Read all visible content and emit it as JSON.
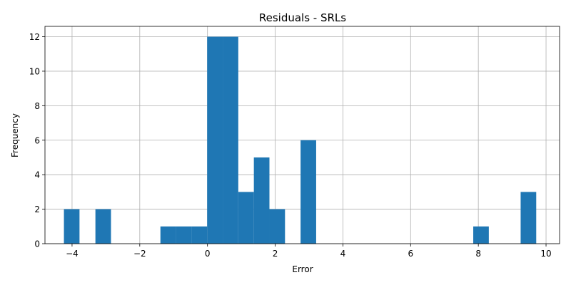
{
  "chart_data": {
    "type": "bar",
    "subtype": "histogram",
    "title": "Residuals - SRLs",
    "xlabel": "Error",
    "ylabel": "Frequency",
    "xlim": [
      -4.8,
      10.4
    ],
    "ylim": [
      0,
      12.6
    ],
    "xticks": [
      -4,
      -2,
      0,
      2,
      4,
      6,
      8,
      10
    ],
    "xtick_labels": [
      "−4",
      "−2",
      "0",
      "2",
      "4",
      "6",
      "8",
      "10"
    ],
    "yticks": [
      0,
      2,
      4,
      6,
      8,
      10,
      12
    ],
    "ytick_labels": [
      "0",
      "2",
      "4",
      "6",
      "8",
      "10",
      "12"
    ],
    "grid": true,
    "bar_color": "#1f77b4",
    "bins": [
      {
        "x0": -4.24,
        "x1": -3.78,
        "count": 2
      },
      {
        "x0": -3.31,
        "x1": -2.85,
        "count": 2
      },
      {
        "x0": -1.39,
        "x1": -0.93,
        "count": 1
      },
      {
        "x0": -0.93,
        "x1": -0.47,
        "count": 1
      },
      {
        "x0": -0.47,
        "x1": -0.01,
        "count": 1
      },
      {
        "x0": -0.01,
        "x1": 0.45,
        "count": 12
      },
      {
        "x0": 0.45,
        "x1": 0.91,
        "count": 12
      },
      {
        "x0": 0.91,
        "x1": 1.37,
        "count": 3
      },
      {
        "x0": 1.37,
        "x1": 1.83,
        "count": 5
      },
      {
        "x0": 1.83,
        "x1": 2.29,
        "count": 2
      },
      {
        "x0": 2.75,
        "x1": 3.21,
        "count": 6
      },
      {
        "x0": 7.85,
        "x1": 8.31,
        "count": 1
      },
      {
        "x0": 9.25,
        "x1": 9.71,
        "count": 3
      }
    ]
  }
}
